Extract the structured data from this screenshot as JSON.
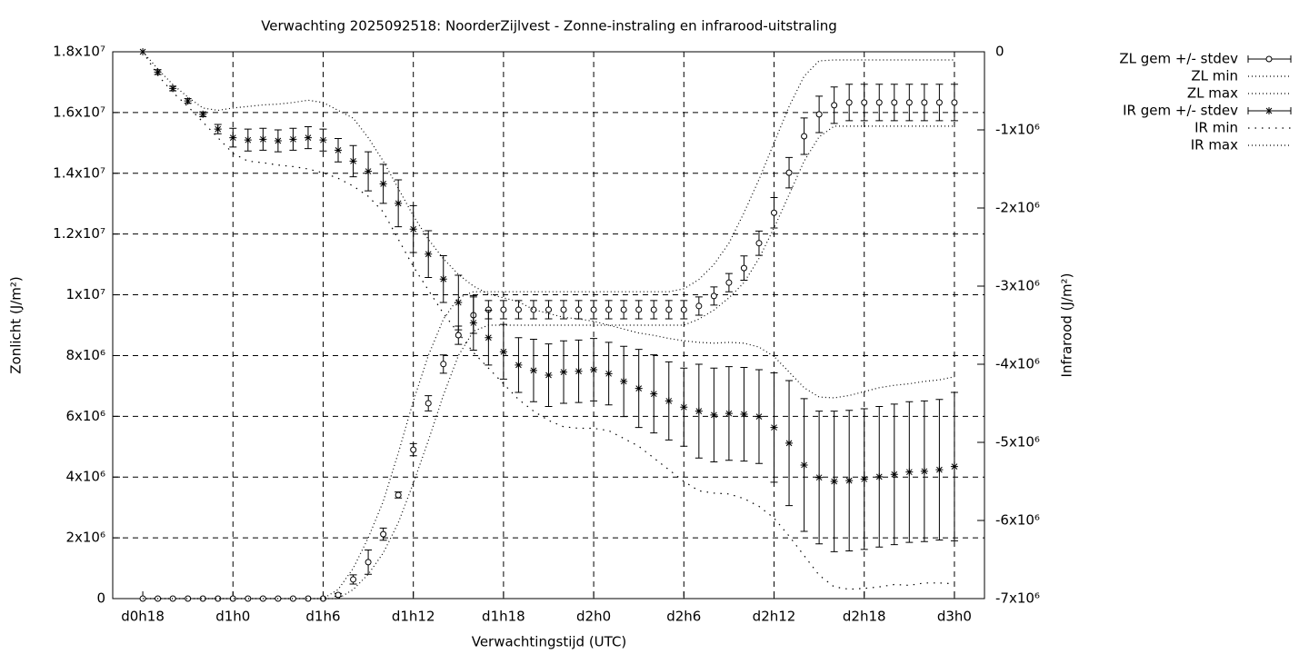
{
  "chart_data": {
    "type": "errorbar-line",
    "title": "Verwachting 2025092518: NoorderZijlvest - Zonne-instraling en infrarood-uitstraling",
    "xlabel": "Verwachtingstijd (UTC)",
    "ylabel": "Zonlicht (J/m²)",
    "y2label": "Infrarood (J/m²)",
    "categories": [
      "d0h18",
      null,
      null,
      null,
      null,
      null,
      "d1h0",
      null,
      null,
      null,
      null,
      null,
      "d1h6",
      null,
      null,
      null,
      null,
      null,
      "d1h12",
      null,
      null,
      null,
      null,
      null,
      "d1h18",
      null,
      null,
      null,
      null,
      null,
      "d2h0",
      null,
      null,
      null,
      null,
      null,
      "d2h6",
      null,
      null,
      null,
      null,
      null,
      "d2h12",
      null,
      null,
      null,
      null,
      null,
      "d2h18",
      null,
      null,
      null,
      null,
      null,
      "d3h0"
    ],
    "ylim": [
      0,
      18000000.0
    ],
    "yticks": [
      0,
      {
        "value": 2000000.0,
        "label": "2x10⁶"
      },
      {
        "value": 4000000.0,
        "label": "4x10⁶"
      },
      {
        "value": 6000000.0,
        "label": "6x10⁶"
      },
      {
        "value": 8000000.0,
        "label": "8x10⁶"
      },
      {
        "value": 10000000.0,
        "label": "1x10⁷"
      },
      {
        "value": 12000000.0,
        "label": "1.2x10⁷"
      },
      {
        "value": 14000000.0,
        "label": "1.4x10⁷"
      },
      {
        "value": 16000000.0,
        "label": "1.6x10⁷"
      },
      {
        "value": 18000000.0,
        "label": "1.8x10⁷"
      }
    ],
    "y2lim": [
      -7000000.0,
      0
    ],
    "y2ticks": [
      0,
      {
        "value": -1000000.0,
        "label": "-1x10⁶"
      },
      {
        "value": -2000000.0,
        "label": "-2x10⁶"
      },
      {
        "value": -3000000.0,
        "label": "-3x10⁶"
      },
      {
        "value": -4000000.0,
        "label": "-4x10⁶"
      },
      {
        "value": -5000000.0,
        "label": "-5x10⁶"
      },
      {
        "value": -6000000.0,
        "label": "-6x10⁶"
      },
      {
        "value": -7000000.0,
        "label": "-7x10⁶"
      }
    ],
    "grid": true,
    "legend": "outside-top-right",
    "series": [
      {
        "name": "ZL gem +/- stdev",
        "color": "#000000",
        "style": "errorbars",
        "marker": "circle",
        "axis": "y",
        "values": [
          0,
          0,
          0,
          0,
          0,
          0,
          0,
          0,
          0,
          0,
          0,
          0,
          0,
          120000.0,
          630000.0,
          1200000.0,
          2120000.0,
          3410000.0,
          4900000.0,
          6430000.0,
          7720000.0,
          8670000.0,
          9330000.0,
          9510000.0,
          9510000.0,
          9510000.0,
          9510000.0,
          9510000.0,
          9510000.0,
          9510000.0,
          9510000.0,
          9510000.0,
          9510000.0,
          9510000.0,
          9510000.0,
          9510000.0,
          9510000.0,
          9630000.0,
          9960000.0,
          10400000.0,
          10880000.0,
          11700000.0,
          12700000.0,
          14020000.0,
          15220000.0,
          15940000.0,
          16240000.0,
          16330000.0,
          16330000.0,
          16330000.0,
          16330000.0,
          16330000.0,
          16330000.0,
          16330000.0,
          16330000.0
        ],
        "errors": [
          0,
          0,
          0,
          0,
          0,
          0,
          0,
          0,
          0,
          0,
          0,
          0,
          0,
          50000.0,
          150000.0,
          400000.0,
          200000.0,
          100000.0,
          200000.0,
          250000.0,
          300000.0,
          300000.0,
          600000.0,
          300000.0,
          300000.0,
          300000.0,
          300000.0,
          300000.0,
          300000.0,
          300000.0,
          300000.0,
          300000.0,
          300000.0,
          300000.0,
          300000.0,
          300000.0,
          300000.0,
          300000.0,
          300000.0,
          300000.0,
          400000.0,
          400000.0,
          500000.0,
          500000.0,
          600000.0,
          600000.0,
          600000.0,
          600000.0,
          600000.0,
          600000.0,
          600000.0,
          600000.0,
          600000.0,
          600000.0,
          600000.0
        ]
      },
      {
        "name": "ZL min",
        "color": "#000000",
        "style": "dotted",
        "axis": "y",
        "values": [
          0,
          0,
          0,
          0,
          0,
          0,
          0,
          0,
          0,
          0,
          0,
          0,
          0,
          0,
          300000.0,
          800000.0,
          1500000.0,
          2500000.0,
          3800000.0,
          5200000.0,
          6700000.0,
          8000000.0,
          8800000.0,
          9000000.0,
          9000000.0,
          9000000.0,
          9000000.0,
          9000000.0,
          9000000.0,
          9000000.0,
          9000000.0,
          9000000.0,
          9000000.0,
          9000000.0,
          9000000.0,
          9000000.0,
          9000000.0,
          9200000.0,
          9500000.0,
          9900000.0,
          10400000.0,
          11200000.0,
          12200000.0,
          13300000.0,
          14400000.0,
          15200000.0,
          15550000.0,
          15550000.0,
          15550000.0,
          15550000.0,
          15550000.0,
          15550000.0,
          15550000.0,
          15550000.0,
          15550000.0
        ]
      },
      {
        "name": "ZL max",
        "color": "#000000",
        "style": "dotted",
        "axis": "y",
        "values": [
          0,
          0,
          0,
          0,
          0,
          0,
          0,
          0,
          0,
          0,
          0,
          0,
          0,
          300000.0,
          1000000.0,
          2000000.0,
          3200000.0,
          4800000.0,
          6500000.0,
          8000000.0,
          9200000.0,
          9900000.0,
          10100000.0,
          10100000.0,
          10100000.0,
          10100000.0,
          10100000.0,
          10100000.0,
          10100000.0,
          10100000.0,
          10100000.0,
          10100000.0,
          10100000.0,
          10100000.0,
          10100000.0,
          10100000.0,
          10200000.0,
          10500000.0,
          11000000.0,
          11700000.0,
          12700000.0,
          13800000.0,
          15000000.0,
          16200000.0,
          17200000.0,
          17700000.0,
          17730000.0,
          17730000.0,
          17730000.0,
          17730000.0,
          17730000.0,
          17730000.0,
          17730000.0,
          17730000.0,
          17730000.0
        ]
      },
      {
        "name": "IR gem +/- stdev",
        "color": "#000000",
        "style": "errorbars",
        "marker": "star",
        "axis": "y2",
        "values": [
          0,
          -260000.0,
          -470000.0,
          -630000.0,
          -800000.0,
          -990000.0,
          -1100000.0,
          -1130000.0,
          -1120000.0,
          -1140000.0,
          -1120000.0,
          -1100000.0,
          -1130000.0,
          -1260000.0,
          -1400000.0,
          -1530000.0,
          -1690000.0,
          -1940000.0,
          -2270000.0,
          -2590000.0,
          -2910000.0,
          -3210000.0,
          -3470000.0,
          -3660000.0,
          -3840000.0,
          -4010000.0,
          -4080000.0,
          -4140000.0,
          -4100000.0,
          -4090000.0,
          -4070000.0,
          -4120000.0,
          -4220000.0,
          -4310000.0,
          -4380000.0,
          -4470000.0,
          -4550000.0,
          -4600000.0,
          -4650000.0,
          -4630000.0,
          -4640000.0,
          -4670000.0,
          -4810000.0,
          -5010000.0,
          -5290000.0,
          -5450000.0,
          -5500000.0,
          -5490000.0,
          -5470000.0,
          -5440000.0,
          -5410000.0,
          -5380000.0,
          -5370000.0,
          -5350000.0,
          -5310000.0
        ],
        "errors": [
          0,
          30000.0,
          30000.0,
          30000.0,
          30000.0,
          60000.0,
          120000.0,
          140000.0,
          140000.0,
          140000.0,
          140000.0,
          140000.0,
          140000.0,
          150000.0,
          200000.0,
          250000.0,
          250000.0,
          300000.0,
          300000.0,
          300000.0,
          300000.0,
          350000.0,
          350000.0,
          350000.0,
          350000.0,
          350000.0,
          400000.0,
          400000.0,
          400000.0,
          400000.0,
          400000.0,
          400000.0,
          450000.0,
          500000.0,
          500000.0,
          500000.0,
          500000.0,
          600000.0,
          600000.0,
          600000.0,
          600000.0,
          600000.0,
          700000.0,
          800000.0,
          850000.0,
          850000.0,
          900000.0,
          900000.0,
          900000.0,
          900000.0,
          900000.0,
          900000.0,
          900000.0,
          900000.0,
          950000.0
        ]
      },
      {
        "name": "IR min",
        "color": "#000000",
        "style": "dotted-wide",
        "axis": "y2",
        "values": [
          0,
          -300000.0,
          -520000.0,
          -700000.0,
          -900000.0,
          -1100000.0,
          -1300000.0,
          -1400000.0,
          -1420000.0,
          -1450000.0,
          -1470000.0,
          -1500000.0,
          -1550000.0,
          -1620000.0,
          -1720000.0,
          -1850000.0,
          -2050000.0,
          -2400000.0,
          -2750000.0,
          -3050000.0,
          -3350000.0,
          -3600000.0,
          -3850000.0,
          -4050000.0,
          -4250000.0,
          -4450000.0,
          -4600000.0,
          -4720000.0,
          -4800000.0,
          -4820000.0,
          -4820000.0,
          -4850000.0,
          -4950000.0,
          -5050000.0,
          -5200000.0,
          -5350000.0,
          -5500000.0,
          -5620000.0,
          -5650000.0,
          -5660000.0,
          -5720000.0,
          -5820000.0,
          -5970000.0,
          -6200000.0,
          -6450000.0,
          -6700000.0,
          -6850000.0,
          -6880000.0,
          -6870000.0,
          -6850000.0,
          -6820000.0,
          -6830000.0,
          -6800000.0,
          -6800000.0,
          -6810000.0
        ]
      },
      {
        "name": "IR max",
        "color": "#000000",
        "style": "dotted",
        "axis": "y2",
        "values": [
          0,
          -220000.0,
          -420000.0,
          -580000.0,
          -720000.0,
          -750000.0,
          -720000.0,
          -700000.0,
          -680000.0,
          -670000.0,
          -650000.0,
          -620000.0,
          -650000.0,
          -750000.0,
          -850000.0,
          -1100000.0,
          -1400000.0,
          -1750000.0,
          -2100000.0,
          -2400000.0,
          -2650000.0,
          -2850000.0,
          -3000000.0,
          -3100000.0,
          -3150000.0,
          -3200000.0,
          -3300000.0,
          -3350000.0,
          -3400000.0,
          -3420000.0,
          -3450000.0,
          -3500000.0,
          -3550000.0,
          -3600000.0,
          -3630000.0,
          -3670000.0,
          -3700000.0,
          -3720000.0,
          -3730000.0,
          -3720000.0,
          -3730000.0,
          -3780000.0,
          -3900000.0,
          -4100000.0,
          -4300000.0,
          -4420000.0,
          -4430000.0,
          -4400000.0,
          -4350000.0,
          -4300000.0,
          -4270000.0,
          -4250000.0,
          -4220000.0,
          -4200000.0,
          -4160000.0
        ]
      }
    ]
  }
}
